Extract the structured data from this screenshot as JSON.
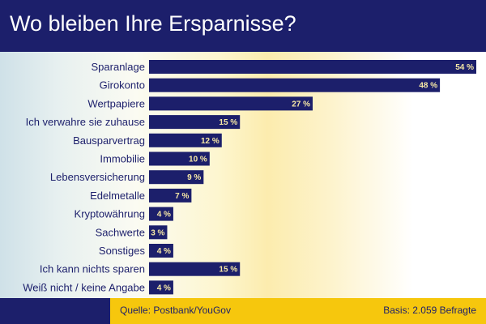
{
  "title": "Wo bleiben Ihre Ersparnisse?",
  "footer": {
    "source": "Quelle: Postbank/YouGov",
    "basis": "Basis: 2.059 Befragte"
  },
  "colors": {
    "header": "#1c1f6b",
    "bar": "#1c1f6b",
    "value_text": "#f7e9a6",
    "footer_yellow": "#f6c70d"
  },
  "chart_data": {
    "type": "bar",
    "orientation": "horizontal",
    "title": "Wo bleiben Ihre Ersparnisse?",
    "unit": "%",
    "categories": [
      "Sparanlage",
      "Girokonto",
      "Wertpapiere",
      "Ich verwahre sie zuhause",
      "Bausparvertrag",
      "Immobilie",
      "Lebensversicherung",
      "Edelmetalle",
      "Kryptowährung",
      "Sachwerte",
      "Sonstiges",
      "Ich kann nichts sparen",
      "Weiß nicht / keine Angabe"
    ],
    "values": [
      54,
      48,
      27,
      15,
      12,
      10,
      9,
      7,
      4,
      3,
      4,
      15,
      4
    ],
    "value_labels": [
      "54 %",
      "48 %",
      "27 %",
      "15 %",
      "12 %",
      "10 %",
      "9 %",
      "7 %",
      "4 %",
      "3 %",
      "4 %",
      "15 %",
      "4 %"
    ],
    "xlim": [
      0,
      54
    ],
    "grid": false,
    "legend": "none"
  }
}
